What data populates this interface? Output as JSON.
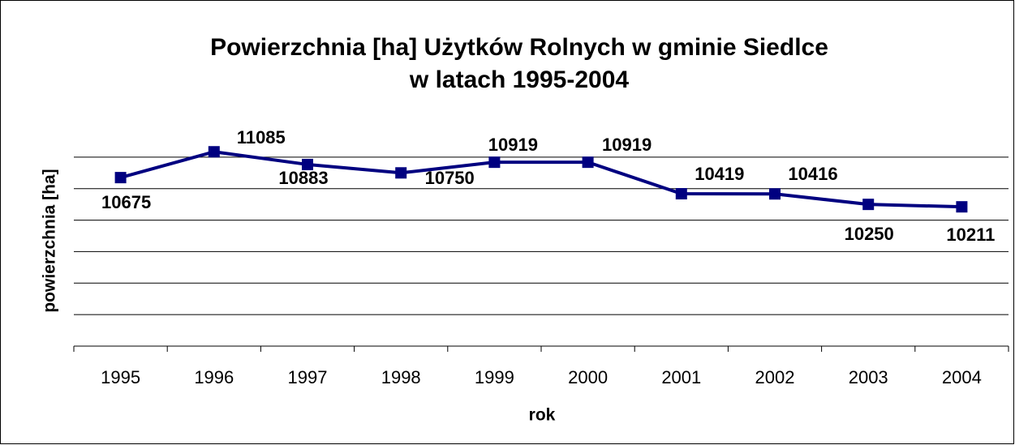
{
  "chart_data": {
    "type": "line",
    "title": [
      "Powierzchnia [ha] Użytków Rolnych w gminie Siedlce",
      "w latach 1995-2004"
    ],
    "x_label": "rok",
    "y_label": "powierzchnia [ha]",
    "categories": [
      "1995",
      "1996",
      "1997",
      "1998",
      "1999",
      "2000",
      "2001",
      "2002",
      "2003",
      "2004"
    ],
    "series": [
      {
        "name": "powierzchnia",
        "color": "#000080",
        "values": [
          10675,
          11085,
          10883,
          10750,
          10919,
          10919,
          10419,
          10416,
          10250,
          10211
        ]
      }
    ],
    "ylim": [
      8000,
      11500
    ],
    "yticks": [
      8000,
      8500,
      9000,
      9500,
      10000,
      10500,
      11000
    ],
    "grid": true
  }
}
